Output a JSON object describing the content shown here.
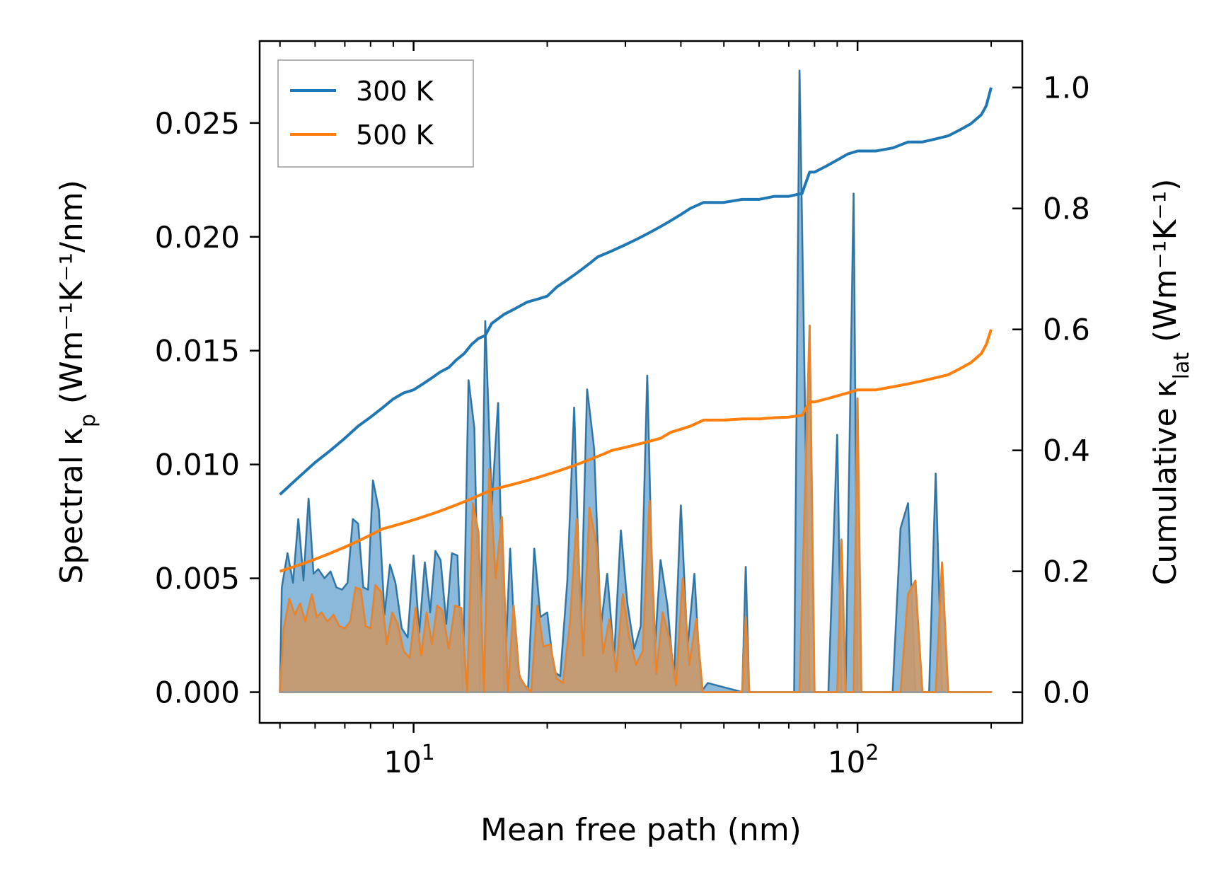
{
  "chart_data": {
    "type": "line",
    "xscale": "log",
    "xlim": [
      4.5,
      235
    ],
    "ylim_left": [
      -0.00135,
      0.0286
    ],
    "ylim_right": [
      -0.0507,
      1.0769
    ],
    "xlabel": "Mean free path (nm)",
    "ylabel_left": {
      "base": "Spectral κ",
      "sub": "p",
      "units": "(Wm⁻¹K⁻¹/nm)"
    },
    "ylabel_right": {
      "base": "Cumulative κ",
      "sub": "lat",
      "units": "(Wm⁻¹K⁻¹)"
    },
    "x_ticks": [
      {
        "value": 10,
        "base": "10",
        "exp": "1"
      },
      {
        "value": 100,
        "base": "10",
        "exp": "2"
      }
    ],
    "y_left_ticks": [
      0.0,
      0.005,
      0.01,
      0.015,
      0.02,
      0.025
    ],
    "y_left_tick_labels": [
      "0.000",
      "0.005",
      "0.010",
      "0.015",
      "0.020",
      "0.025"
    ],
    "y_right_ticks": [
      0.0,
      0.2,
      0.4,
      0.6,
      0.8,
      1.0
    ],
    "y_right_tick_labels": [
      "0.0",
      "0.2",
      "0.4",
      "0.6",
      "0.8",
      "1.0"
    ],
    "legend": {
      "position": "upper-left",
      "entries": [
        {
          "label": "300 K",
          "color": "#1f77b4"
        },
        {
          "label": "500 K",
          "color": "#ff7f0e"
        }
      ]
    },
    "colors": {
      "s300_line": "#1f77b4",
      "s300_fill": "#8bb9dc",
      "s500_line": "#ff7f0e",
      "s500_fill": "#c69a70",
      "fill_edge": "#9a9a9a"
    },
    "spectral": [
      {
        "name": "300 K",
        "x": [
          5.0,
          5.05,
          5.2,
          5.35,
          5.5,
          5.65,
          5.8,
          5.95,
          6.1,
          6.3,
          6.5,
          6.7,
          6.9,
          7.1,
          7.3,
          7.5,
          7.7,
          7.9,
          8.1,
          8.35,
          8.6,
          8.85,
          9.1,
          9.4,
          9.7,
          10.0,
          10.3,
          10.6,
          10.9,
          11.2,
          11.5,
          11.85,
          12.2,
          12.55,
          12.9,
          13.3,
          13.7,
          14.1,
          14.5,
          15.0,
          15.5,
          16.0,
          16.5,
          17.0,
          17.5,
          18.1,
          18.7,
          19.3,
          20.0,
          20.7,
          21.4,
          22.2,
          23.0,
          23.8,
          24.6,
          25.5,
          26.4,
          27.3,
          28.3,
          29.3,
          30.3,
          31.4,
          32.5,
          33.6,
          34.8,
          36.0,
          37.3,
          38.6,
          40.0,
          41.4,
          42.9,
          44.4,
          46.0,
          55.0,
          56.0,
          57.0,
          62.0,
          64.0,
          66.0,
          72.0,
          74.0,
          78.0,
          80.0,
          86.0,
          90.0,
          92.0,
          94.0,
          98.0,
          100.0,
          102.0,
          120.0,
          125.0,
          130.0,
          135.0,
          140.0,
          145.0,
          150.0,
          155.0,
          160.0,
          165.0,
          170.0,
          175.0,
          180.0,
          185.0,
          190.0,
          195.0,
          200.0
        ],
        "y": [
          0.0,
          0.0046,
          0.0061,
          0.0048,
          0.0076,
          0.0049,
          0.0085,
          0.0052,
          0.0054,
          0.005,
          0.0053,
          0.0046,
          0.0045,
          0.0048,
          0.0076,
          0.0074,
          0.0046,
          0.0045,
          0.0093,
          0.008,
          0.0034,
          0.0056,
          0.0048,
          0.0028,
          0.0024,
          0.006,
          0.0026,
          0.0057,
          0.0035,
          0.0062,
          0.0058,
          0.003,
          0.0061,
          0.006,
          0.0,
          0.0137,
          0.0116,
          0.0,
          0.0163,
          0.0082,
          0.0127,
          0.0,
          0.0063,
          0.0012,
          0.0005,
          0.0,
          0.0063,
          0.0033,
          0.0035,
          0.0009,
          0.0007,
          0.0049,
          0.0125,
          0.0026,
          0.0133,
          0.0107,
          0.0028,
          0.0052,
          0.0015,
          0.0071,
          0.0039,
          0.0019,
          0.0029,
          0.0139,
          0.0013,
          0.0058,
          0.0038,
          0.0005,
          0.0082,
          0.0019,
          0.0052,
          0.0,
          0.0004,
          0.0,
          0.0055,
          0.0,
          0.0,
          0.0,
          0.0,
          0.0,
          0.0273,
          0.0,
          0.0,
          0.0,
          0.0113,
          0.0,
          0.0,
          0.0219,
          0.0,
          0.0,
          0.0,
          0.0072,
          0.0083,
          0.0,
          0.0,
          0.0,
          0.0096,
          0.0,
          0.0,
          0.0,
          0.0,
          0.0,
          0.0,
          0.0,
          0.0,
          0.0,
          0.0
        ],
        "fill_color": "#8bb9dc",
        "line_color": "#1f77b4"
      },
      {
        "name": "500 K",
        "x": [
          5.0,
          5.1,
          5.25,
          5.4,
          5.55,
          5.7,
          5.9,
          6.05,
          6.2,
          6.4,
          6.6,
          6.8,
          7.0,
          7.2,
          7.4,
          7.6,
          7.8,
          8.0,
          8.2,
          8.45,
          8.7,
          8.95,
          9.2,
          9.5,
          9.8,
          10.1,
          10.4,
          10.7,
          11.0,
          11.3,
          11.6,
          12.0,
          12.4,
          12.8,
          13.2,
          13.6,
          14.0,
          14.4,
          14.8,
          15.3,
          15.8,
          16.3,
          16.8,
          17.3,
          17.8,
          18.4,
          19.0,
          19.6,
          20.3,
          21.0,
          21.7,
          22.5,
          23.3,
          24.1,
          24.9,
          25.8,
          26.7,
          27.6,
          28.6,
          29.6,
          30.6,
          31.7,
          32.8,
          34.0,
          35.2,
          36.4,
          37.7,
          39.0,
          40.4,
          41.8,
          43.3,
          44.8,
          46.0,
          50.0,
          55.0,
          56.0,
          57.0,
          62.0,
          64.0,
          66.0,
          72.0,
          74.0,
          78.0,
          80.0,
          86.0,
          90.0,
          92.0,
          94.0,
          98.0,
          100.0,
          102.0,
          120.0,
          125.0,
          130.0,
          135.0,
          140.0,
          145.0,
          150.0,
          155.0,
          160.0,
          165.0,
          170.0,
          175.0,
          180.0,
          185.0,
          190.0,
          195.0,
          200.0
        ],
        "y": [
          0.0,
          0.0028,
          0.0041,
          0.0034,
          0.0039,
          0.0031,
          0.0043,
          0.0033,
          0.0035,
          0.0031,
          0.0034,
          0.0029,
          0.0028,
          0.0031,
          0.0046,
          0.0045,
          0.0029,
          0.0028,
          0.0047,
          0.0044,
          0.0021,
          0.0035,
          0.003,
          0.0018,
          0.0015,
          0.0037,
          0.0016,
          0.0035,
          0.0021,
          0.0038,
          0.0036,
          0.0019,
          0.0038,
          0.0037,
          0.0,
          0.0083,
          0.007,
          0.0,
          0.0098,
          0.005,
          0.0077,
          0.0,
          0.0038,
          0.0007,
          0.0003,
          0.0,
          0.0038,
          0.002,
          0.0021,
          0.0006,
          0.0004,
          0.003,
          0.0076,
          0.0016,
          0.0081,
          0.0065,
          0.0017,
          0.0032,
          0.0009,
          0.0043,
          0.0024,
          0.0012,
          0.0018,
          0.0084,
          0.0008,
          0.0035,
          0.0023,
          0.0003,
          0.005,
          0.0012,
          0.0032,
          0.0,
          0.0,
          0.0,
          0.0,
          0.0033,
          0.0,
          0.0,
          0.0,
          0.0,
          0.0,
          0.0,
          0.0161,
          0.0,
          0.0,
          0.0,
          0.0067,
          0.0,
          0.0,
          0.0129,
          0.0,
          0.0,
          0.0,
          0.0043,
          0.0049,
          0.0,
          0.0,
          0.0,
          0.0057,
          0.0,
          0.0,
          0.0,
          0.0,
          0.0,
          0.0,
          0.0,
          0.0,
          0.0
        ],
        "fill_color": "#c69a70",
        "line_color": "#ff7f0e"
      }
    ],
    "cumulative": [
      {
        "name": "300 K",
        "color": "#1f77b4",
        "x": [
          5.0,
          5.5,
          6.0,
          6.5,
          7.0,
          7.5,
          8.0,
          8.5,
          9.0,
          9.5,
          10.0,
          10.5,
          11.0,
          11.5,
          12.0,
          12.5,
          13.0,
          13.5,
          14.0,
          14.5,
          15.0,
          16.0,
          17.0,
          18.0,
          19.0,
          20.0,
          21.0,
          22.0,
          23.0,
          24.0,
          25.0,
          26.0,
          27.0,
          28.0,
          30.0,
          32.0,
          34.0,
          36.0,
          38.0,
          40.0,
          42.0,
          45.0,
          50.0,
          55.0,
          60.0,
          65.0,
          70.0,
          75.0,
          78.0,
          80.0,
          85.0,
          90.0,
          95.0,
          100.0,
          110.0,
          120.0,
          130.0,
          140.0,
          150.0,
          160.0,
          170.0,
          180.0,
          190.0,
          195.0,
          200.0
        ],
        "y": [
          0.327,
          0.355,
          0.38,
          0.4,
          0.42,
          0.44,
          0.455,
          0.47,
          0.485,
          0.495,
          0.5,
          0.51,
          0.52,
          0.53,
          0.537,
          0.55,
          0.56,
          0.575,
          0.585,
          0.59,
          0.61,
          0.625,
          0.635,
          0.645,
          0.65,
          0.655,
          0.67,
          0.68,
          0.69,
          0.7,
          0.71,
          0.72,
          0.725,
          0.73,
          0.74,
          0.75,
          0.76,
          0.77,
          0.78,
          0.79,
          0.8,
          0.81,
          0.81,
          0.815,
          0.815,
          0.82,
          0.82,
          0.825,
          0.86,
          0.86,
          0.87,
          0.88,
          0.89,
          0.895,
          0.895,
          0.9,
          0.91,
          0.91,
          0.915,
          0.92,
          0.93,
          0.94,
          0.955,
          0.97,
          1.0
        ]
      },
      {
        "name": "500 K",
        "color": "#ff7f0e",
        "x": [
          5.0,
          5.5,
          6.0,
          6.5,
          7.0,
          7.5,
          8.0,
          8.5,
          9.0,
          9.5,
          10.0,
          10.5,
          11.0,
          11.5,
          12.0,
          12.5,
          13.0,
          13.5,
          14.0,
          14.5,
          15.0,
          16.0,
          17.0,
          18.0,
          19.0,
          20.0,
          21.0,
          22.0,
          23.0,
          24.0,
          25.0,
          26.0,
          27.0,
          28.0,
          30.0,
          32.0,
          34.0,
          36.0,
          38.0,
          40.0,
          42.0,
          45.0,
          50.0,
          55.0,
          60.0,
          65.0,
          70.0,
          75.0,
          78.0,
          80.0,
          85.0,
          90.0,
          95.0,
          100.0,
          110.0,
          120.0,
          130.0,
          140.0,
          150.0,
          160.0,
          170.0,
          180.0,
          190.0,
          195.0,
          200.0
        ],
        "y": [
          0.2,
          0.21,
          0.22,
          0.23,
          0.24,
          0.25,
          0.26,
          0.27,
          0.275,
          0.28,
          0.285,
          0.29,
          0.295,
          0.3,
          0.305,
          0.31,
          0.315,
          0.32,
          0.325,
          0.33,
          0.335,
          0.34,
          0.345,
          0.35,
          0.355,
          0.36,
          0.365,
          0.37,
          0.375,
          0.38,
          0.385,
          0.39,
          0.395,
          0.4,
          0.405,
          0.41,
          0.415,
          0.42,
          0.43,
          0.435,
          0.44,
          0.45,
          0.45,
          0.452,
          0.452,
          0.454,
          0.455,
          0.458,
          0.48,
          0.48,
          0.485,
          0.49,
          0.495,
          0.5,
          0.5,
          0.505,
          0.51,
          0.515,
          0.52,
          0.525,
          0.535,
          0.545,
          0.56,
          0.575,
          0.6
        ]
      }
    ]
  }
}
